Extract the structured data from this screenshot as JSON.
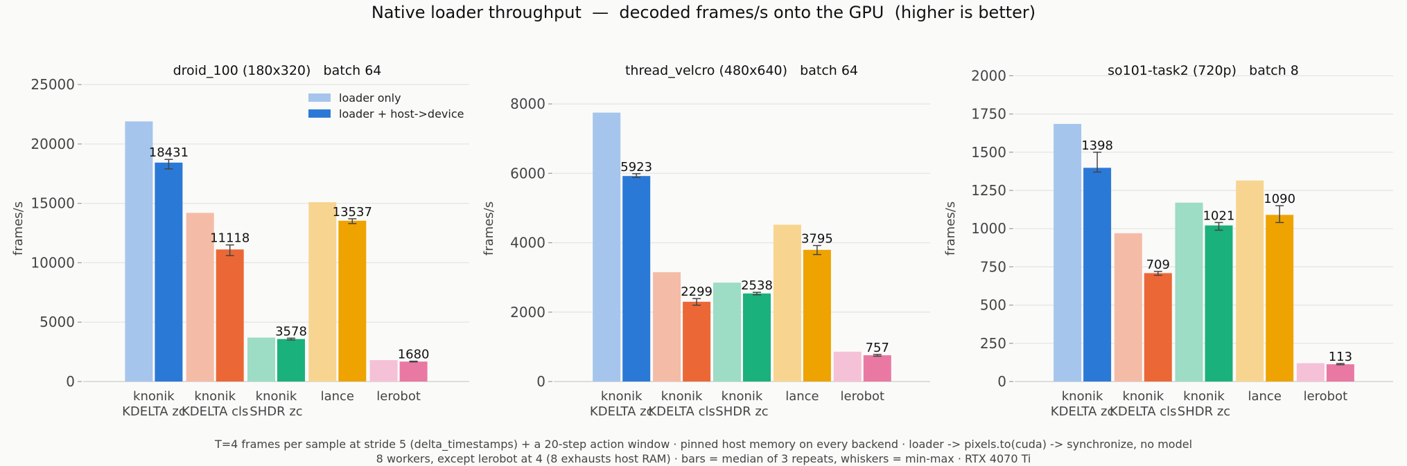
{
  "suptitle": "Native loader throughput  —  decoded frames/s onto the GPU  (higher is better)",
  "footnote": [
    "T=4 frames per sample at stride 5 (delta_timestamps) + a 20-step action window · pinned host memory on every backend · loader -> pixels.to(cuda) -> synchronize, no model",
    "8 workers, except lerobot at 4 (8 exhausts host RAM) · bars = median of 3 repeats, whiskers = min-max · RTX 4070 Ti"
  ],
  "colors": {
    "grid": "#e3e3e1",
    "axis_text": "#444444",
    "whisker": "#444444",
    "bars": [
      {
        "light": "#a6c5ec",
        "dark": "#2b79d6"
      },
      {
        "light": "#f4bca6",
        "dark": "#eb6836"
      },
      {
        "light": "#9ddcc5",
        "dark": "#1ab17c"
      },
      {
        "light": "#f7d590",
        "dark": "#eea300"
      },
      {
        "light": "#f5c1d7",
        "dark": "#e979a3"
      }
    ]
  },
  "chart_data": [
    {
      "type": "bar",
      "title": "droid_100 (180x320)   batch 64",
      "ylabel": "frames/s",
      "ylim": [
        0,
        26000
      ],
      "yticks": [
        0,
        5000,
        10000,
        15000,
        20000,
        25000
      ],
      "grid": true,
      "legend_position": "top-right",
      "categories": [
        [
          "knonik",
          "KDELTA zc"
        ],
        [
          "knonik",
          "KDELTA cls"
        ],
        [
          "knonik",
          "SHDR zc"
        ],
        [
          "lance"
        ],
        [
          "lerobot"
        ]
      ],
      "series": [
        {
          "name": "loader only",
          "values": [
            21900,
            14200,
            3700,
            15100,
            1800
          ]
        },
        {
          "name": "loader + host->device",
          "values": [
            18431,
            11118,
            3578,
            13537,
            1680
          ],
          "err_min": [
            17900,
            10600,
            3500,
            13300,
            1650
          ],
          "err_max": [
            18700,
            11500,
            3650,
            13700,
            1710
          ],
          "labels": [
            "18431",
            "11118",
            "3578",
            "13537",
            "1680"
          ]
        }
      ]
    },
    {
      "type": "bar",
      "title": "thread_velcro (480x640)   batch 64",
      "ylabel": "frames/s",
      "ylim": [
        0,
        8900
      ],
      "yticks": [
        0,
        2000,
        4000,
        6000,
        8000
      ],
      "grid": true,
      "categories": [
        [
          "knonik",
          "KDELTA zc"
        ],
        [
          "knonik",
          "KDELTA cls"
        ],
        [
          "knonik",
          "SHDR zc"
        ],
        [
          "lance"
        ],
        [
          "lerobot"
        ]
      ],
      "series": [
        {
          "name": "loader only",
          "values": [
            7750,
            3150,
            2850,
            4520,
            860
          ]
        },
        {
          "name": "loader + host->device",
          "values": [
            5923,
            2299,
            2538,
            3795,
            757
          ],
          "err_min": [
            5880,
            2200,
            2500,
            3660,
            730
          ],
          "err_max": [
            5990,
            2390,
            2570,
            3920,
            780
          ],
          "labels": [
            "5923",
            "2299",
            "2538",
            "3795",
            "757"
          ]
        }
      ]
    },
    {
      "type": "bar",
      "title": "so101-task2 (720p)   batch 8",
      "ylabel": "frames/s",
      "ylim": [
        0,
        2020
      ],
      "yticks": [
        0,
        250,
        500,
        750,
        1000,
        1250,
        1500,
        1750,
        2000
      ],
      "grid": true,
      "categories": [
        [
          "knonik",
          "KDELTA zc"
        ],
        [
          "knonik",
          "KDELTA cls"
        ],
        [
          "knonik",
          "SHDR zc"
        ],
        [
          "lance"
        ],
        [
          "lerobot"
        ]
      ],
      "series": [
        {
          "name": "loader only",
          "values": [
            1685,
            970,
            1170,
            1315,
            120
          ]
        },
        {
          "name": "loader + host->device",
          "values": [
            1398,
            709,
            1021,
            1090,
            113
          ],
          "err_min": [
            1370,
            695,
            990,
            1040,
            110
          ],
          "err_max": [
            1500,
            720,
            1040,
            1150,
            118
          ],
          "labels": [
            "1398",
            "709",
            "1021",
            "1090",
            "113"
          ]
        }
      ]
    }
  ]
}
